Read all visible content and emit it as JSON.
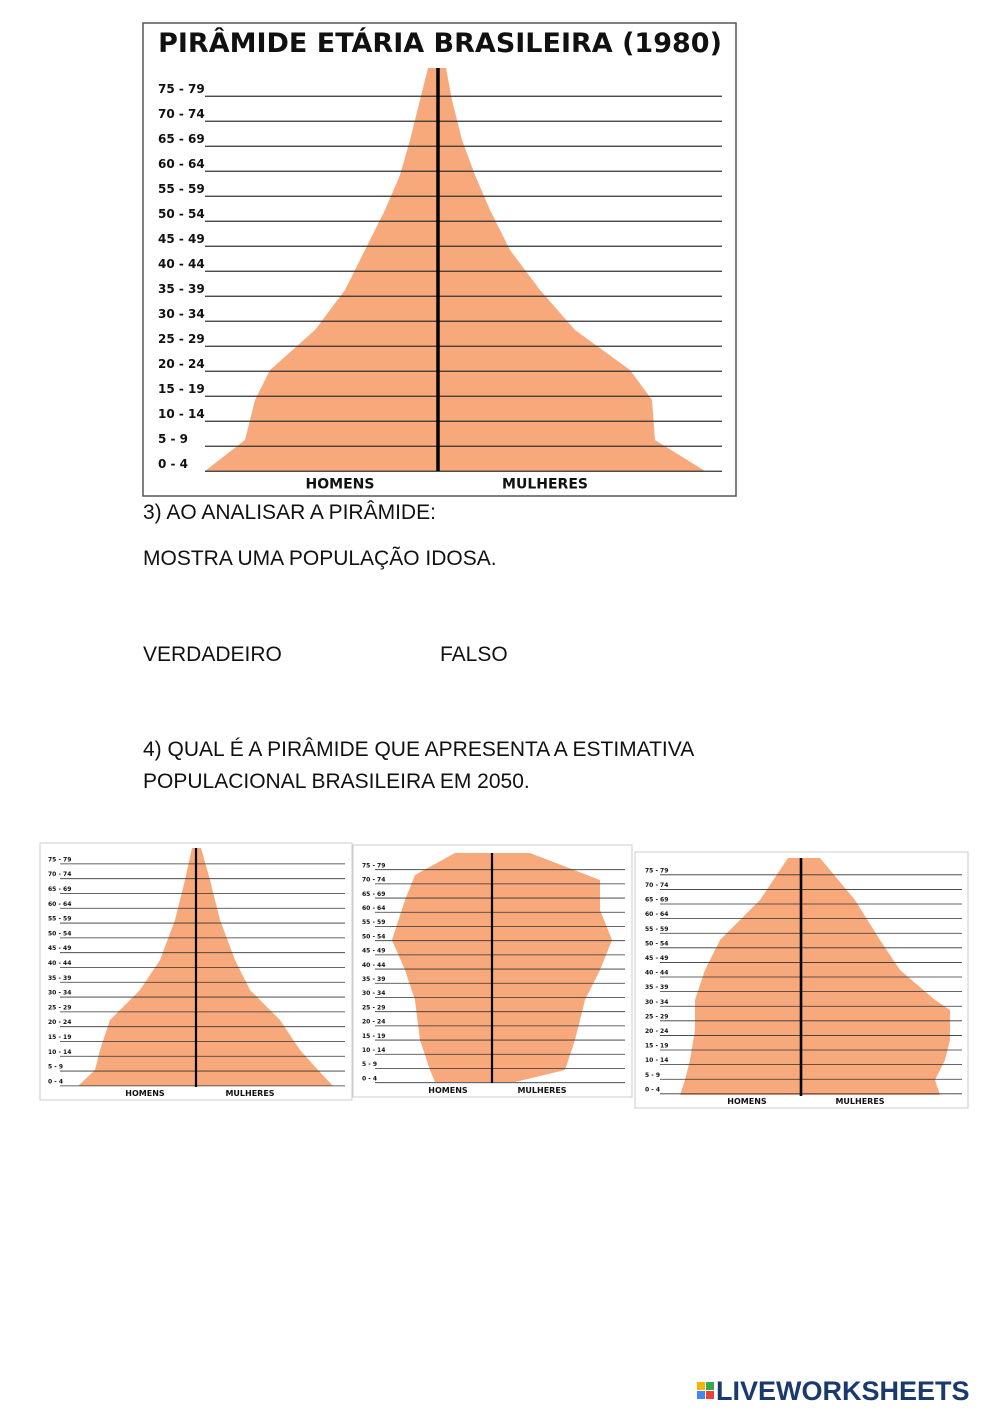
{
  "pyramid_1980": {
    "title": "PIRÂMIDE ETÁRIA BRASILEIRA (1980)",
    "age_groups": [
      "75 - 79",
      "70 - 74",
      "65 - 69",
      "60 - 64",
      "55 - 59",
      "50 - 54",
      "45 - 49",
      "40 - 44",
      "35 - 39",
      "30 - 34",
      "25 - 29",
      "20 - 24",
      "15 - 19",
      "10 - 14",
      "5 - 9",
      "0 - 4"
    ],
    "men_label": "HOMENS",
    "women_label": "MULHERES"
  },
  "question_3": {
    "heading": "3) AO ANALISAR A PIRÂMIDE:",
    "statement": "MOSTRA UMA POPULAÇÃO IDOSA.",
    "options": [
      "VERDADEIRO",
      "FALSO"
    ]
  },
  "question_4": {
    "lines": [
      "4)  QUAL É A PIRÂMIDE QUE APRESENTA A ESTIMATIVA",
      "POPULACIONAL BRASILEIRA EM 2050."
    ]
  },
  "small_pyramids": [
    {
      "age_groups": [
        "75 - 79",
        "70 - 74",
        "65 - 69",
        "60 - 64",
        "55 - 59",
        "50 - 54",
        "45 - 49",
        "40 - 44",
        "35 - 39",
        "30 - 34",
        "25 - 29",
        "20 - 24",
        "15 - 19",
        "10 - 14",
        "5 - 9",
        "0 - 4"
      ],
      "men_label": "HOMENS",
      "women_label": "MULHERES"
    },
    {
      "age_groups": [
        "75 - 79",
        "70 - 74",
        "65 - 69",
        "60 - 64",
        "55 - 59",
        "50 - 54",
        "45 - 49",
        "40 - 44",
        "35 - 39",
        "30 - 34",
        "25 - 29",
        "20 - 24",
        "15 - 19",
        "10 - 14",
        "5 - 9",
        "0 - 4"
      ],
      "men_label": "HOMENS",
      "women_label": "MULHERES"
    },
    {
      "age_groups": [
        "75 - 79",
        "70 - 74",
        "65 - 69",
        "60 - 64",
        "55 - 59",
        "50 - 54",
        "45 - 49",
        "40 - 44",
        "35 - 39",
        "30 - 34",
        "25 - 29",
        "20 - 24",
        "15 - 19",
        "10 - 14",
        "5 - 9",
        "0 - 4"
      ],
      "men_label": "HOMENS",
      "women_label": "MULHERES"
    }
  ],
  "footer": {
    "logo": "LIVEWORKSHEETS"
  }
}
